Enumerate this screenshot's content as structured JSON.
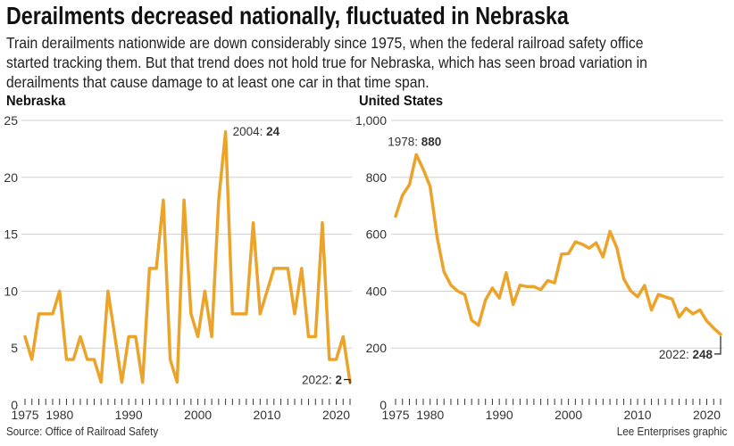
{
  "title": "Derailments decreased nationally, fluctuated in Nebraska",
  "subtitle_lines": [
    "Train derailments nationwide are down considerably since 1975, when the federal railroad safety office",
    "started tracking them. But that trend does not hold true for Nebraska, which has seen broad variation in",
    "derailments that cause damage to at least one car in that time span."
  ],
  "source": "Source: Office of Railroad Safety",
  "credit": "Lee Enterprises graphic",
  "colors": {
    "line": "#eba32a",
    "grid": "#cfcfcf"
  },
  "chart_data": [
    {
      "type": "line",
      "title": "Nebraska",
      "x": [
        1975,
        1976,
        1977,
        1978,
        1979,
        1980,
        1981,
        1982,
        1983,
        1984,
        1985,
        1986,
        1987,
        1988,
        1989,
        1990,
        1991,
        1992,
        1993,
        1994,
        1995,
        1996,
        1997,
        1998,
        1999,
        2000,
        2001,
        2002,
        2003,
        2004,
        2005,
        2006,
        2007,
        2008,
        2009,
        2010,
        2011,
        2012,
        2013,
        2014,
        2015,
        2016,
        2017,
        2018,
        2019,
        2020,
        2021,
        2022
      ],
      "values": [
        6,
        4,
        8,
        8,
        8,
        10,
        4,
        4,
        6,
        4,
        4,
        2,
        10,
        6,
        2,
        6,
        6,
        2,
        12,
        12,
        18,
        4,
        2,
        18,
        8,
        6,
        10,
        6,
        18,
        24,
        8,
        8,
        8,
        16,
        8,
        10,
        12,
        12,
        12,
        8,
        12,
        6,
        6,
        16,
        4,
        4,
        6,
        2
      ],
      "ylim": [
        0,
        25
      ],
      "yticks": [
        0,
        5,
        10,
        15,
        20,
        25
      ],
      "ytick_labels": [
        "0",
        "5",
        "10",
        "15",
        "20",
        "25"
      ],
      "xticks": [
        1975,
        1980,
        1990,
        2000,
        2010,
        2020
      ],
      "xtick_labels": [
        "1975",
        "1980",
        "1990",
        "2000",
        "2010",
        "2020"
      ],
      "grid": true,
      "annotations": [
        {
          "x": 2004,
          "y": 24,
          "text_year": "2004: ",
          "text_value": "24"
        },
        {
          "x": 2022,
          "y": 2,
          "text_year": "2022: ",
          "text_value": "2"
        }
      ]
    },
    {
      "type": "line",
      "title": "United States",
      "x": [
        1975,
        1976,
        1977,
        1978,
        1979,
        1980,
        1981,
        1982,
        1983,
        1984,
        1985,
        1986,
        1987,
        1988,
        1989,
        1990,
        1991,
        1992,
        1993,
        1994,
        1995,
        1996,
        1997,
        1998,
        1999,
        2000,
        2001,
        2002,
        2003,
        2004,
        2005,
        2006,
        2007,
        2008,
        2009,
        2010,
        2011,
        2012,
        2013,
        2014,
        2015,
        2016,
        2017,
        2018,
        2019,
        2020,
        2021,
        2022
      ],
      "values": [
        663,
        737,
        774,
        880,
        828,
        768,
        590,
        468,
        421,
        400,
        388,
        298,
        280,
        369,
        411,
        376,
        465,
        353,
        421,
        416,
        416,
        405,
        437,
        429,
        530,
        532,
        573,
        565,
        551,
        570,
        520,
        610,
        552,
        443,
        401,
        380,
        420,
        334,
        388,
        380,
        372,
        309,
        340,
        320,
        334,
        295,
        270,
        248
      ],
      "ylim": [
        0,
        1000
      ],
      "yticks": [
        0,
        200,
        400,
        600,
        800,
        1000
      ],
      "ytick_labels": [
        "0",
        "200",
        "400",
        "600",
        "800",
        "1,000"
      ],
      "xticks": [
        1975,
        1980,
        1990,
        2000,
        2010,
        2020
      ],
      "xtick_labels": [
        "1975",
        "1980",
        "1990",
        "2000",
        "2010",
        "2020"
      ],
      "grid": true,
      "annotations": [
        {
          "x": 1978,
          "y": 880,
          "text_year": "1978: ",
          "text_value": "880"
        },
        {
          "x": 2022,
          "y": 248,
          "text_year": "2022: ",
          "text_value": "248"
        }
      ]
    }
  ]
}
